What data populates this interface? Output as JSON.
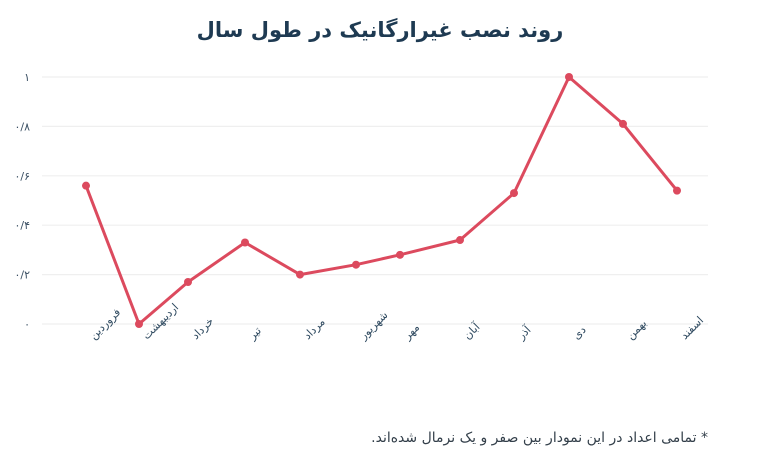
{
  "title": "روند نصب غیرارگانیک در طول سال",
  "footnote": "* تمامی اعداد در این نمودار بین صفر و یک نرمال شده‌اند.",
  "colors": {
    "line": "#dc4a5e",
    "grid": "#efefef",
    "title": "#1e3a52"
  },
  "y_tick_labels": [
    "0",
    "0/2",
    "0/4",
    "0/6",
    "0/8",
    "1"
  ],
  "chart_data": {
    "type": "line",
    "title": "روند نصب غیرارگانیک در طول سال",
    "xlabel": "",
    "ylabel": "",
    "categories": [
      "فروردین",
      "اردیبهشت",
      "خرداد",
      "تیر",
      "مرداد",
      "شهریور",
      "مهر",
      "آبان",
      "آذر",
      "دی",
      "بهمن",
      "اسفند"
    ],
    "series": [
      {
        "name": "نصب غیرارگانیک",
        "values": [
          0.56,
          0.0,
          0.17,
          0.33,
          0.2,
          0.24,
          0.28,
          0.34,
          0.53,
          1.0,
          0.81,
          0.54
        ]
      }
    ],
    "ylim": [
      0,
      1
    ],
    "yticks": [
      0,
      0.2,
      0.4,
      0.6,
      0.8,
      1
    ],
    "ytick_labels": [
      "۰",
      "۰/۲",
      "۰/۴",
      "۰/۶",
      "۰/۸",
      "۱"
    ],
    "grid": true,
    "legend": "none",
    "annotations": [
      "* تمامی اعداد در این نمودار بین صفر و یک نرمال شده‌اند."
    ]
  }
}
